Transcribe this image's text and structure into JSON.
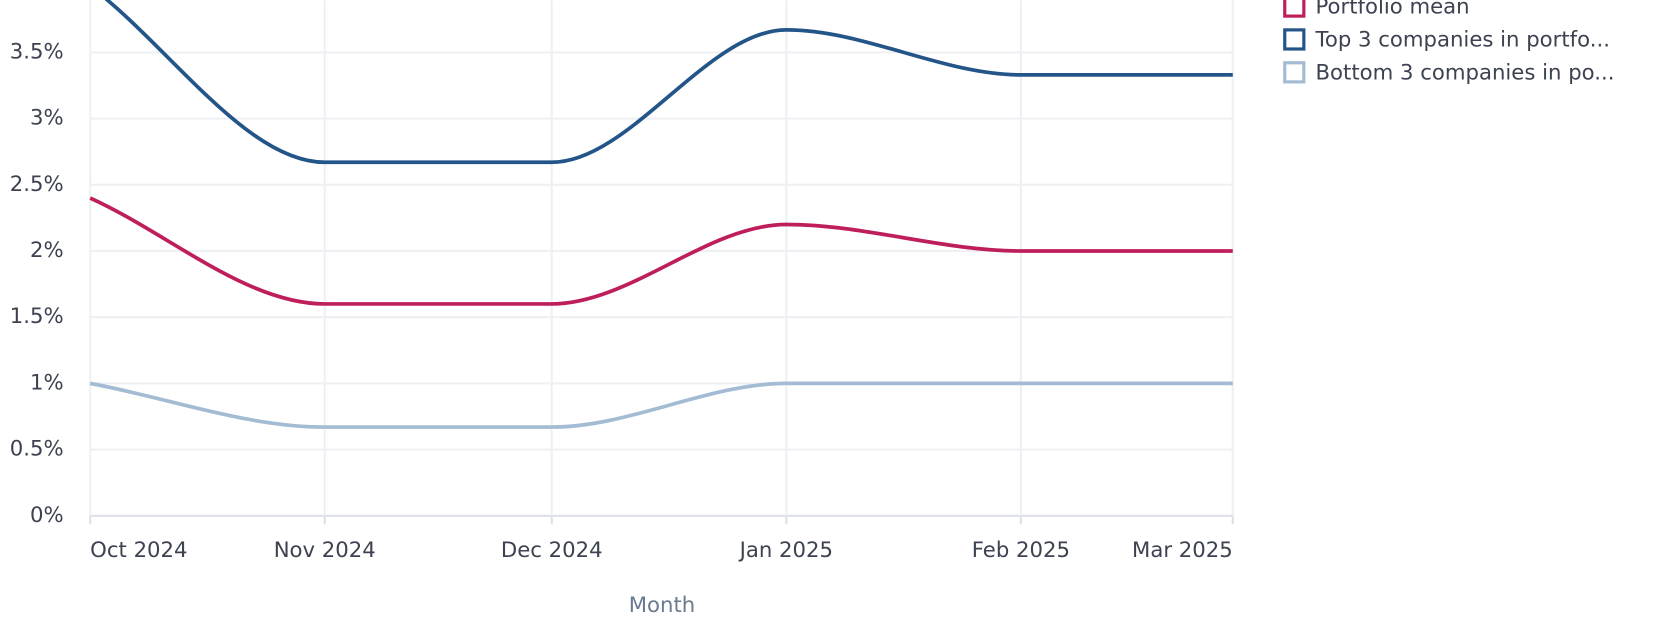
{
  "chart_data": {
    "type": "line",
    "x_label": "Month",
    "x": [
      "2024-10",
      "2024-11",
      "2024-12",
      "2025-01",
      "2025-02",
      "2025-03"
    ],
    "xlim": [
      "2024-10",
      "2025-03"
    ],
    "xticks": [
      {
        "value": "2024-10",
        "label": "Oct 2024"
      },
      {
        "value": "2024-11",
        "label": "Nov 2024"
      },
      {
        "value": "2024-12",
        "label": "Dec 2024"
      },
      {
        "value": "2025-01",
        "label": "Jan 2025"
      },
      {
        "value": "2025-02",
        "label": "Feb 2025"
      },
      {
        "value": "2025-03",
        "label": "Mar 2025"
      }
    ],
    "ylim": [
      0,
      4
    ],
    "yticks": [
      {
        "value": 0,
        "label": "0%"
      },
      {
        "value": 0.5,
        "label": "0.5%"
      },
      {
        "value": 1,
        "label": "1%"
      },
      {
        "value": 1.5,
        "label": "1.5%"
      },
      {
        "value": 2,
        "label": "2%"
      },
      {
        "value": 2.5,
        "label": "2.5%"
      },
      {
        "value": 3,
        "label": "3%"
      },
      {
        "value": 3.5,
        "label": "3.5%"
      }
    ],
    "grid": true,
    "legend": "right",
    "series": [
      {
        "name": "Portfolio mean",
        "color": "#be1e5c",
        "values": [
          2.4,
          1.6,
          1.6,
          2.2,
          2.0,
          2.0
        ]
      },
      {
        "name": "Top 3 companies in portfo...",
        "color": "#245589",
        "values": [
          4.0,
          2.67,
          2.67,
          3.67,
          3.33,
          3.33
        ]
      },
      {
        "name": "Bottom 3 companies in po...",
        "color": "#a3bcd4",
        "values": [
          1.0,
          0.67,
          0.67,
          1.0,
          1.0,
          1.0
        ]
      }
    ]
  }
}
